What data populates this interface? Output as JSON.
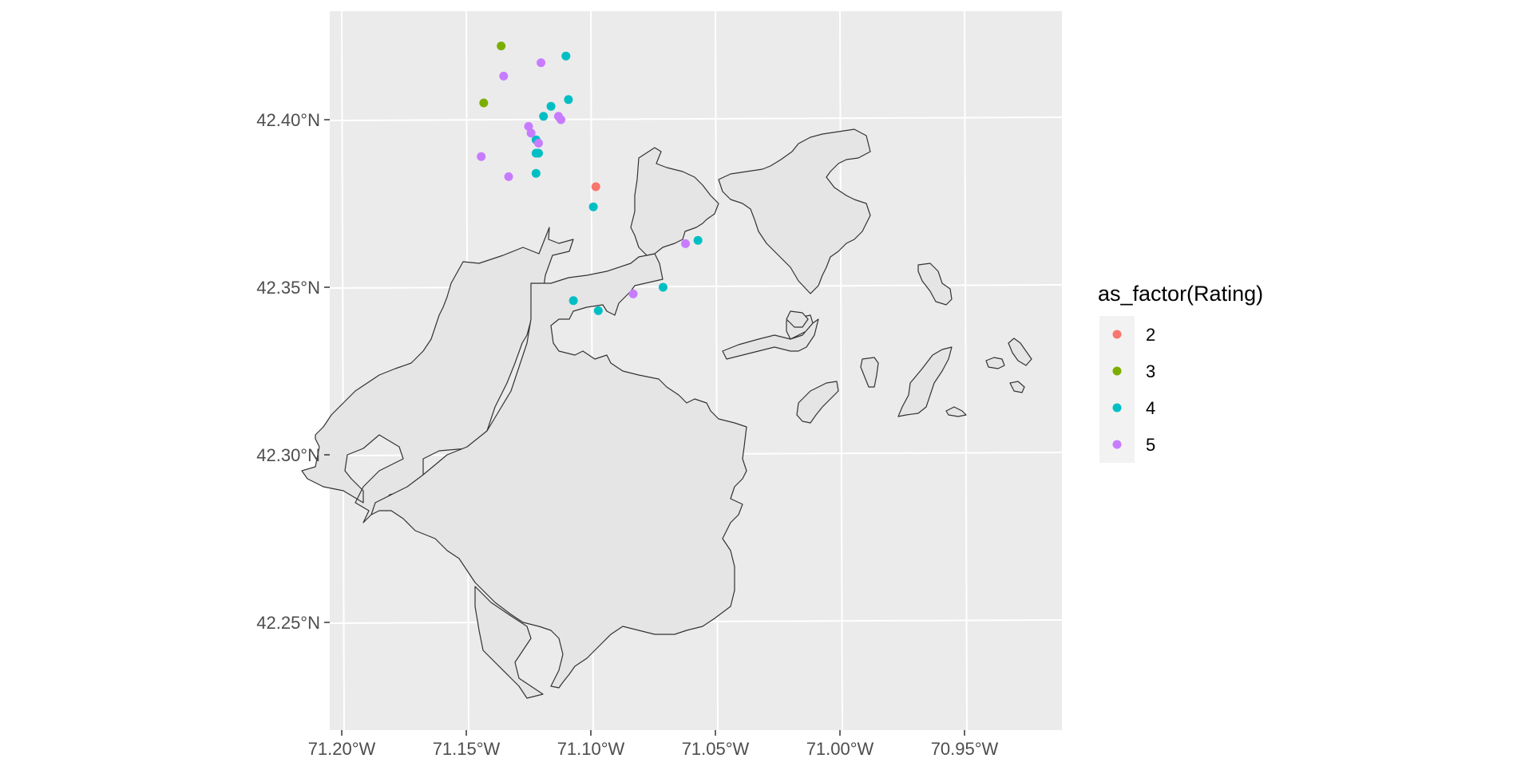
{
  "chart_data": {
    "type": "scatter",
    "subtype": "map",
    "title": "",
    "xlabel": "",
    "ylabel": "",
    "xlim": [
      -71.205,
      -70.915
    ],
    "ylim": [
      42.218,
      42.433
    ],
    "x_ticks": [
      {
        "value": -71.2,
        "label": "71.20°W"
      },
      {
        "value": -71.15,
        "label": "71.15°W"
      },
      {
        "value": -71.1,
        "label": "71.10°W"
      },
      {
        "value": -71.05,
        "label": "71.05°W"
      },
      {
        "value": -71.0,
        "label": "71.00°W"
      },
      {
        "value": -70.95,
        "label": "70.95°W"
      }
    ],
    "y_ticks": [
      {
        "value": 42.25,
        "label": "42.25°N"
      },
      {
        "value": 42.3,
        "label": "42.30°N"
      },
      {
        "value": 42.35,
        "label": "42.35°N"
      },
      {
        "value": 42.4,
        "label": "42.40°N"
      }
    ],
    "grid": true,
    "legend": {
      "title": "as_factor(Rating)",
      "placement": "right",
      "entries": [
        {
          "label": "2",
          "color": "#F8766D"
        },
        {
          "label": "3",
          "color": "#7CAE00"
        },
        {
          "label": "4",
          "color": "#00BFC4"
        },
        {
          "label": "5",
          "color": "#C77CFF"
        }
      ]
    },
    "colors": {
      "panel": "#EBEBEB",
      "grid": "#FFFFFF",
      "land": "#E5E5E5",
      "outline": "#333333"
    },
    "points": [
      {
        "lon": -71.136,
        "lat": 42.422,
        "rating": "3"
      },
      {
        "lon": -71.143,
        "lat": 42.405,
        "rating": "3"
      },
      {
        "lon": -71.098,
        "lat": 42.38,
        "rating": "2"
      },
      {
        "lon": -71.11,
        "lat": 42.419,
        "rating": "4"
      },
      {
        "lon": -71.109,
        "lat": 42.406,
        "rating": "4"
      },
      {
        "lon": -71.116,
        "lat": 42.404,
        "rating": "4"
      },
      {
        "lon": -71.119,
        "lat": 42.401,
        "rating": "4"
      },
      {
        "lon": -71.122,
        "lat": 42.394,
        "rating": "4"
      },
      {
        "lon": -71.121,
        "lat": 42.39,
        "rating": "4"
      },
      {
        "lon": -71.122,
        "lat": 42.39,
        "rating": "4"
      },
      {
        "lon": -71.122,
        "lat": 42.384,
        "rating": "4"
      },
      {
        "lon": -71.099,
        "lat": 42.374,
        "rating": "4"
      },
      {
        "lon": -71.057,
        "lat": 42.364,
        "rating": "4"
      },
      {
        "lon": -71.071,
        "lat": 42.35,
        "rating": "4"
      },
      {
        "lon": -71.107,
        "lat": 42.346,
        "rating": "4"
      },
      {
        "lon": -71.097,
        "lat": 42.343,
        "rating": "4"
      },
      {
        "lon": -71.12,
        "lat": 42.417,
        "rating": "5"
      },
      {
        "lon": -71.135,
        "lat": 42.413,
        "rating": "5"
      },
      {
        "lon": -71.113,
        "lat": 42.401,
        "rating": "5"
      },
      {
        "lon": -71.112,
        "lat": 42.4,
        "rating": "5"
      },
      {
        "lon": -71.125,
        "lat": 42.398,
        "rating": "5"
      },
      {
        "lon": -71.124,
        "lat": 42.396,
        "rating": "5"
      },
      {
        "lon": -71.121,
        "lat": 42.393,
        "rating": "5"
      },
      {
        "lon": -71.144,
        "lat": 42.389,
        "rating": "5"
      },
      {
        "lon": -71.133,
        "lat": 42.383,
        "rating": "5"
      },
      {
        "lon": -71.062,
        "lat": 42.363,
        "rating": "5"
      },
      {
        "lon": -71.083,
        "lat": 42.348,
        "rating": "5"
      }
    ]
  }
}
